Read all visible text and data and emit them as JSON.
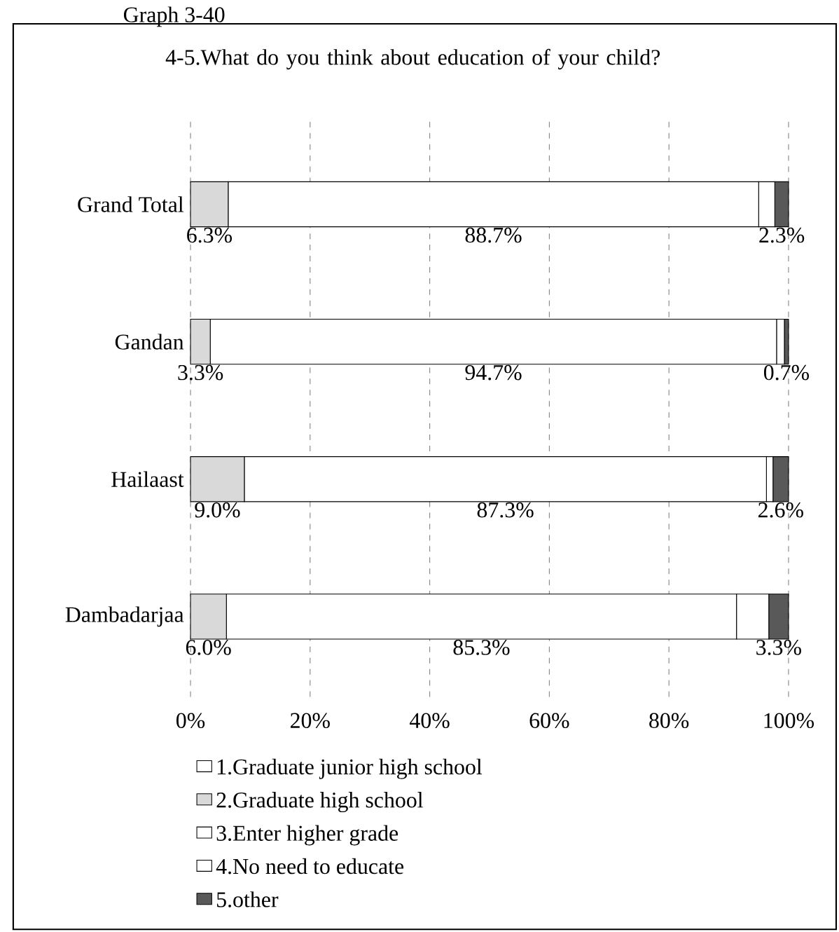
{
  "chart_data": {
    "type": "bar",
    "orientation": "horizontal",
    "stacked": true,
    "title": "4-5.What do you think about education of your child?",
    "annotations": [
      "Graph 3-40"
    ],
    "categories": [
      "Grand Total",
      "Gandan",
      "Hailaast",
      "Dambadarjaa"
    ],
    "series": [
      {
        "name": "1.Graduate junior high school",
        "color": "#ffffff",
        "values": [
          0,
          0,
          0,
          0
        ]
      },
      {
        "name": "2.Graduate high school",
        "color": "#d9d9d9",
        "values": [
          6.3,
          3.3,
          9.0,
          6.0
        ],
        "value_labels": [
          "6.3%",
          "3.3%",
          "9.0%",
          "6.0%"
        ]
      },
      {
        "name": "3.Enter higher grade",
        "color": "#ffffff",
        "values": [
          88.7,
          94.7,
          87.3,
          85.3
        ],
        "value_labels": [
          "88.7%",
          "94.7%",
          "87.3%",
          "85.3%"
        ]
      },
      {
        "name": "4.No need to educate",
        "color": "#ffffff",
        "values": [
          2.7,
          1.3,
          1.1,
          5.4
        ]
      },
      {
        "name": "5.other",
        "color": "#595959",
        "values": [
          2.3,
          0.7,
          2.6,
          3.3
        ],
        "value_labels": [
          "2.3%",
          "0.7%",
          "2.6%",
          "3.3%"
        ]
      }
    ],
    "xlim": [
      0,
      100
    ],
    "xticks": [
      {
        "value": 0,
        "label": "0%"
      },
      {
        "value": 20,
        "label": "20%"
      },
      {
        "value": 40,
        "label": "40%"
      },
      {
        "value": 60,
        "label": "60%"
      },
      {
        "value": 80,
        "label": "80%"
      },
      {
        "value": 100,
        "label": "100%"
      }
    ],
    "grid": "x",
    "legend": "bottom"
  }
}
